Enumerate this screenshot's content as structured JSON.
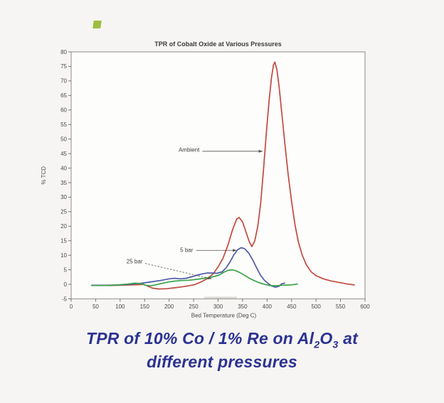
{
  "page": {
    "background": "#f6f5f3"
  },
  "bullet": {
    "color": "#9dbf3d"
  },
  "caption": {
    "color": "#2c3292",
    "line1_pre": "TPR of 10% Co / 1% Re on Al",
    "sub_2": "2",
    "mid_o": "O",
    "sub_3": "3",
    "line1_post": " at",
    "line2": "different pressures"
  },
  "chart_data": {
    "type": "line",
    "title": "TPR of Cobalt Oxide at Various Pressures",
    "xlabel": "Bed Temperature (Deg C)",
    "ylabel": "% TCD",
    "xlim": [
      0,
      600
    ],
    "ylim": [
      -5,
      80
    ],
    "xticks": [
      0,
      50,
      100,
      150,
      200,
      250,
      300,
      350,
      400,
      450,
      500,
      550,
      600
    ],
    "yticks": [
      -5,
      0,
      5,
      10,
      15,
      20,
      25,
      30,
      35,
      40,
      45,
      50,
      55,
      60,
      65,
      70,
      75,
      80
    ],
    "grid": false,
    "legend_position": "none",
    "plot_bg": "#fdfdfc",
    "border_color": "#a8a49f",
    "tick_text_color": "#4a4a4a",
    "title_color": "#3b3b3b",
    "series": [
      {
        "name": "Ambient",
        "color": "#c04a3e",
        "points": [
          [
            42,
            -0.4
          ],
          [
            60,
            -0.4
          ],
          [
            80,
            -0.4
          ],
          [
            100,
            -0.3
          ],
          [
            120,
            -0.2
          ],
          [
            138,
            -0.1
          ],
          [
            148,
            0
          ],
          [
            156,
            -0.6
          ],
          [
            166,
            -1.3
          ],
          [
            180,
            -1.6
          ],
          [
            195,
            -1.5
          ],
          [
            210,
            -1.2
          ],
          [
            225,
            -0.9
          ],
          [
            240,
            -0.5
          ],
          [
            252,
            -0.1
          ],
          [
            265,
            0.8
          ],
          [
            278,
            2
          ],
          [
            290,
            3.6
          ],
          [
            300,
            6
          ],
          [
            310,
            9
          ],
          [
            320,
            13.5
          ],
          [
            330,
            19
          ],
          [
            338,
            22.5
          ],
          [
            343,
            23
          ],
          [
            350,
            21.5
          ],
          [
            358,
            17.5
          ],
          [
            364,
            14.5
          ],
          [
            369,
            13
          ],
          [
            375,
            15
          ],
          [
            381,
            20
          ],
          [
            387,
            28
          ],
          [
            393,
            40
          ],
          [
            399,
            53
          ],
          [
            404,
            63
          ],
          [
            409,
            71
          ],
          [
            413,
            75.5
          ],
          [
            416,
            76.5
          ],
          [
            420,
            74
          ],
          [
            425,
            67.5
          ],
          [
            430,
            59
          ],
          [
            436,
            49
          ],
          [
            443,
            38
          ],
          [
            450,
            28.5
          ],
          [
            457,
            20.5
          ],
          [
            464,
            14.5
          ],
          [
            472,
            10
          ],
          [
            480,
            6.8
          ],
          [
            490,
            4.3
          ],
          [
            500,
            3
          ],
          [
            515,
            1.9
          ],
          [
            530,
            1.2
          ],
          [
            548,
            0.6
          ],
          [
            565,
            0.1
          ],
          [
            578,
            -0.2
          ]
        ]
      },
      {
        "name": "5 bar",
        "color": "#4f5aa8",
        "points": [
          [
            42,
            -0.3
          ],
          [
            70,
            -0.3
          ],
          [
            100,
            -0.2
          ],
          [
            125,
            0.1
          ],
          [
            145,
            0.4
          ],
          [
            165,
            0.9
          ],
          [
            185,
            1.4
          ],
          [
            200,
            1.9
          ],
          [
            212,
            2.1
          ],
          [
            222,
            1.9
          ],
          [
            235,
            2.1
          ],
          [
            248,
            2.7
          ],
          [
            258,
            3.2
          ],
          [
            268,
            3.6
          ],
          [
            278,
            3.9
          ],
          [
            288,
            3.9
          ],
          [
            298,
            3.8
          ],
          [
            308,
            4.3
          ],
          [
            316,
            5.6
          ],
          [
            324,
            7.6
          ],
          [
            332,
            10.1
          ],
          [
            340,
            11.9
          ],
          [
            347,
            12.6
          ],
          [
            354,
            12.3
          ],
          [
            362,
            10.9
          ],
          [
            370,
            8.6
          ],
          [
            378,
            5.9
          ],
          [
            386,
            3.3
          ],
          [
            394,
            1.5
          ],
          [
            402,
            0.3
          ],
          [
            410,
            -0.6
          ],
          [
            417,
            -1
          ],
          [
            424,
            -0.7
          ],
          [
            430,
            0.2
          ],
          [
            436,
            0.4
          ]
        ]
      },
      {
        "name": "25 bar",
        "color": "#3aa24b",
        "points": [
          [
            42,
            -0.4
          ],
          [
            70,
            -0.4
          ],
          [
            95,
            -0.2
          ],
          [
            115,
            0.1
          ],
          [
            130,
            0.4
          ],
          [
            142,
            0.3
          ],
          [
            152,
            -0.3
          ],
          [
            162,
            -0.5
          ],
          [
            172,
            -0.2
          ],
          [
            185,
            0.3
          ],
          [
            198,
            0.8
          ],
          [
            210,
            1.1
          ],
          [
            225,
            1.3
          ],
          [
            240,
            1.4
          ],
          [
            255,
            1.7
          ],
          [
            268,
            2
          ],
          [
            280,
            2.3
          ],
          [
            292,
            2.7
          ],
          [
            302,
            3.2
          ],
          [
            312,
            4.2
          ],
          [
            320,
            4.8
          ],
          [
            328,
            5
          ],
          [
            336,
            4.7
          ],
          [
            345,
            4
          ],
          [
            355,
            3
          ],
          [
            365,
            2
          ],
          [
            375,
            1.2
          ],
          [
            385,
            0.5
          ],
          [
            395,
            0
          ],
          [
            405,
            -0.4
          ],
          [
            418,
            -0.5
          ],
          [
            432,
            -0.3
          ],
          [
            448,
            -0.2
          ],
          [
            462,
            0.1
          ]
        ]
      }
    ],
    "annotations": [
      {
        "text": "Ambient",
        "text_at": [
          262,
          46.2
        ],
        "arrow_from": [
          268,
          45.8
        ],
        "arrow_to": [
          391,
          45.8
        ],
        "style": "solid"
      },
      {
        "text": "5 bar",
        "text_at": [
          249,
          11.7
        ],
        "arrow_from": [
          255,
          11.7
        ],
        "arrow_to": [
          338,
          11.7
        ],
        "style": "solid"
      },
      {
        "text": "25 bar",
        "text_at": [
          146,
          7.8
        ],
        "arrow_from": [
          151,
          7.2
        ],
        "arrow_to": [
          287,
          1.9
        ],
        "style": "dashed"
      }
    ]
  }
}
